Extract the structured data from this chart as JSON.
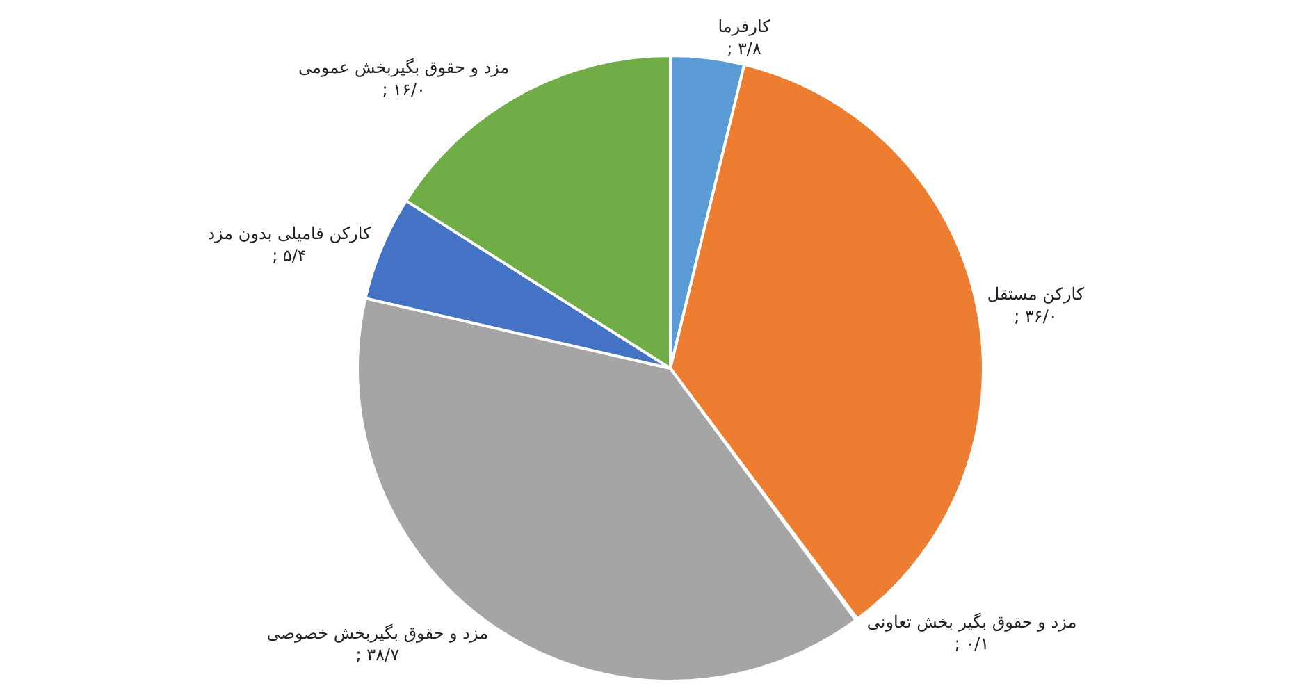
{
  "chart_data": {
    "type": "pie",
    "categories": [
      "کارفرما",
      "کارکن مستقل",
      "مزد و حقوق بگیر بخش تعاونی",
      "مزد و حقوق بگیربخش خصوصی",
      "کارکن فامیلی بدون مزد",
      "مزد و حقوق بگیربخش عمومی"
    ],
    "values": [
      3.8,
      36.0,
      0.1,
      38.7,
      5.4,
      16.0
    ],
    "value_labels": [
      "; ۳/۸",
      "; ۳۶/۰",
      "; ۰/۱",
      "; ۳۸/۷",
      "; ۵/۴",
      "; ۱۶/۰"
    ],
    "colors": [
      "#5b9bd5",
      "#ed7d31",
      "#ffc000",
      "#a5a5a5",
      "#4472c4",
      "#70ad47"
    ],
    "legend": false
  }
}
